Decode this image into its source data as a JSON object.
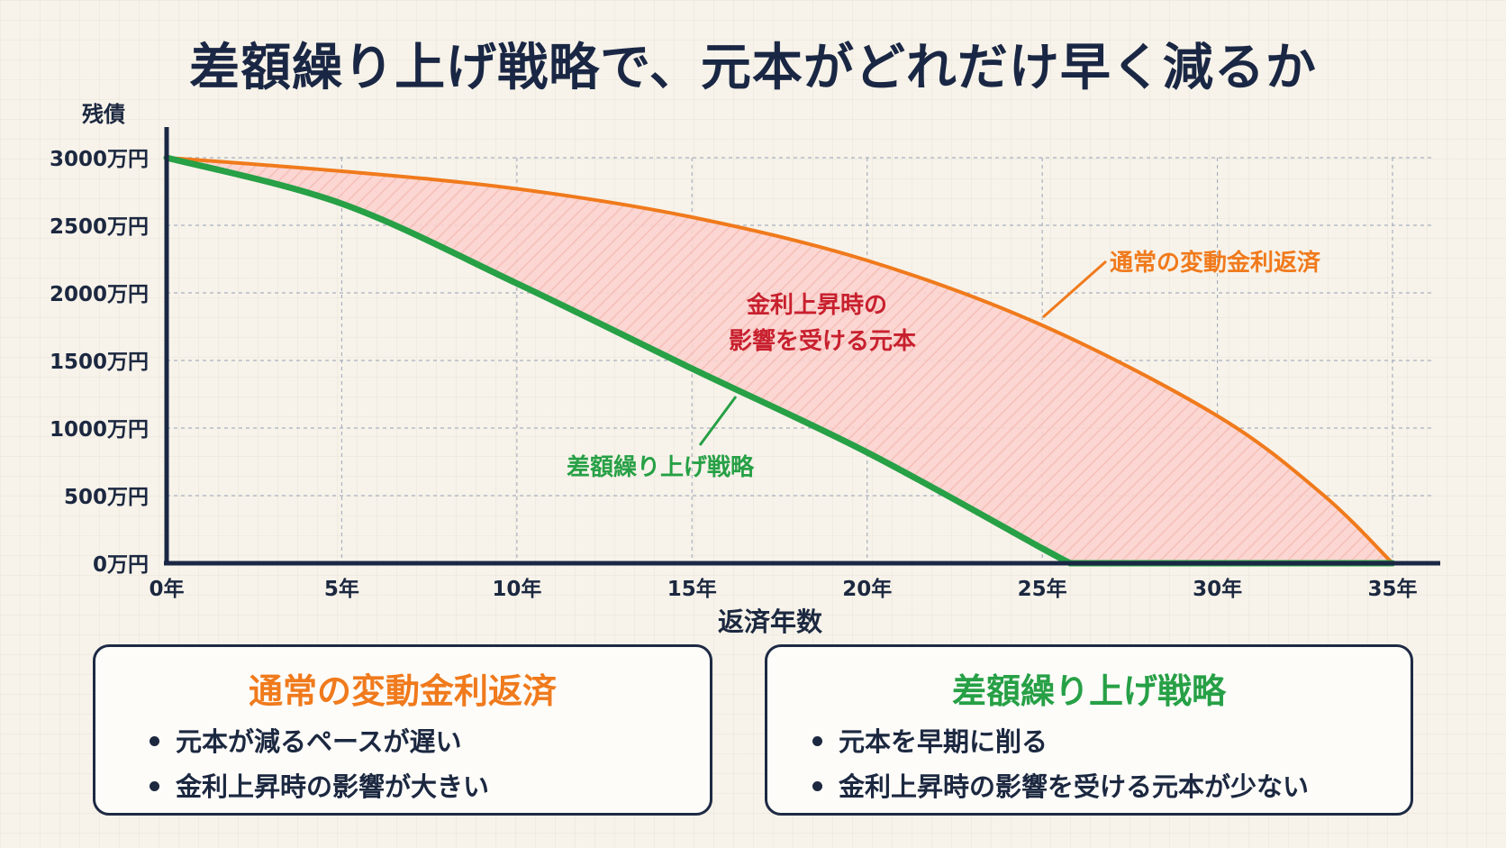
{
  "title": "差額繰り上げ戦略で、元本がどれだけ早く減るか",
  "colors": {
    "normal": "#f07a1c",
    "strategy": "#27a046",
    "area_label": "#c8202e",
    "area_fill": "#fbd3cf",
    "axis": "#1a2744"
  },
  "chart_data": {
    "type": "line",
    "xlabel": "返済年数",
    "ylabel": "残債",
    "xlim": [
      0,
      35
    ],
    "ylim": [
      0,
      3000
    ],
    "x_ticks": [
      "0年",
      "5年",
      "10年",
      "15年",
      "20年",
      "25年",
      "30年",
      "35年"
    ],
    "y_ticks": [
      "3000万円",
      "2500万円",
      "2000万円",
      "1500万円",
      "1000万円",
      "500万円",
      "0万円"
    ],
    "grid": true,
    "series": [
      {
        "name": "通常の変動金利返済",
        "x": [
          0,
          5,
          10,
          15,
          20,
          25,
          30,
          33,
          35
        ],
        "values": [
          3000,
          2900,
          2770,
          2560,
          2240,
          1760,
          1090,
          510,
          0
        ]
      },
      {
        "name": "差額繰り上げ戦略",
        "x": [
          0,
          5,
          10,
          15,
          20,
          25,
          25.8,
          30,
          35
        ],
        "values": [
          3000,
          2660,
          2070,
          1440,
          820,
          110,
          0,
          0,
          0
        ]
      }
    ],
    "annotations": [
      {
        "text_line1": "金利上昇時の",
        "text_line2": "影響を受ける元本"
      }
    ]
  },
  "labels": {
    "normal_series": "通常の変動金利返済",
    "strategy_series": "差額繰り上げ戦略",
    "area_line1": "金利上昇時の",
    "area_line2": "影響を受ける元本"
  },
  "cards": {
    "normal": {
      "title": "通常の変動金利返済",
      "items": [
        "元本が減るペースが遅い",
        "金利上昇時の影響が大きい"
      ]
    },
    "strategy": {
      "title": "差額繰り上げ戦略",
      "items": [
        "元本を早期に削る",
        "金利上昇時の影響を受ける元本が少ない"
      ]
    }
  }
}
